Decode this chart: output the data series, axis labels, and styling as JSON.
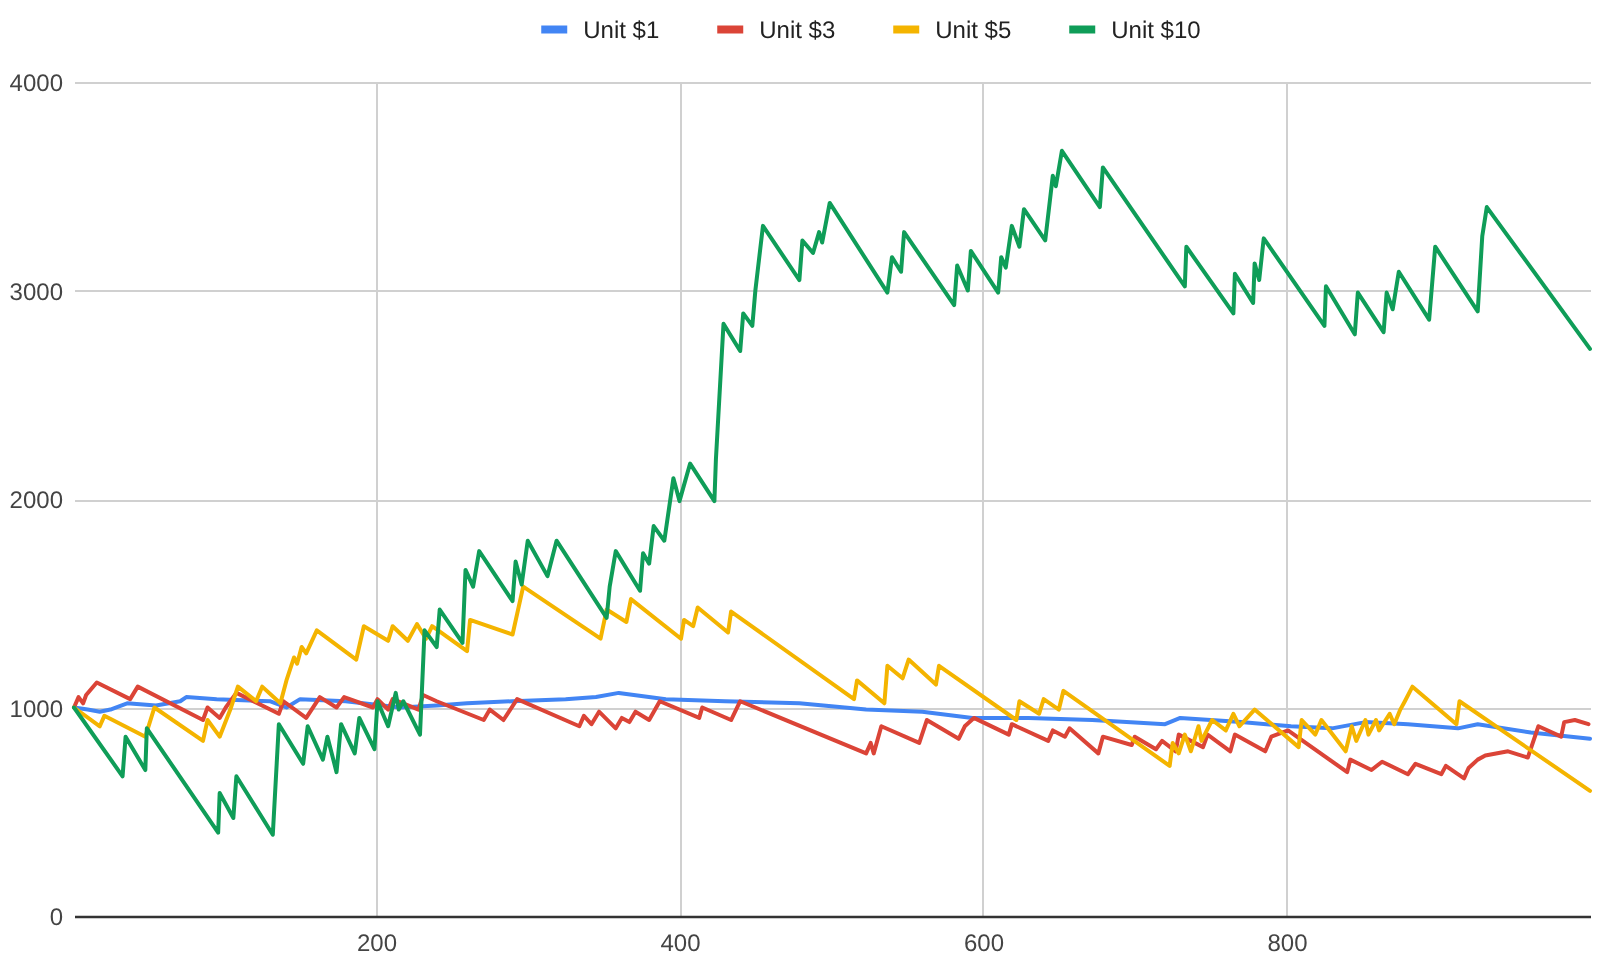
{
  "chart_data": {
    "type": "line",
    "series": [
      {
        "name": "Unit $1",
        "color": "#4285f4",
        "x": [
          1,
          10,
          18,
          25,
          36,
          55,
          71,
          75,
          95,
          130,
          141,
          150,
          180,
          216,
          240,
          260,
          290,
          325,
          345,
          360,
          391,
          430,
          479,
          523,
          560,
          593,
          630,
          672,
          720,
          730,
          770,
          803,
          830,
          852,
          880,
          913,
          926,
          961,
          1000
        ],
        "values": [
          1000,
          990,
          980,
          990,
          1020,
          1010,
          1030,
          1050,
          1040,
          1030,
          1000,
          1040,
          1030,
          1000,
          1010,
          1020,
          1030,
          1040,
          1050,
          1070,
          1040,
          1030,
          1020,
          990,
          980,
          950,
          950,
          940,
          920,
          950,
          930,
          910,
          900,
          930,
          920,
          900,
          920,
          880,
          850
        ]
      },
      {
        "name": "Unit $3",
        "color": "#db4437",
        "x": [
          1,
          4,
          7,
          9,
          16,
          38,
          43,
          86,
          89,
          97,
          101,
          108,
          136,
          139,
          154,
          163,
          174,
          179,
          198,
          201,
          208,
          211,
          228,
          231,
          240,
          271,
          275,
          284,
          293,
          334,
          337,
          342,
          347,
          358,
          362,
          367,
          371,
          380,
          387,
          413,
          415,
          434,
          440,
          523,
          526,
          528,
          533,
          558,
          563,
          584,
          588,
          594,
          617,
          619,
          643,
          646,
          654,
          657,
          676,
          679,
          698,
          700,
          714,
          718,
          727,
          729,
          745,
          748,
          763,
          766,
          786,
          790,
          801,
          840,
          842,
          856,
          863,
          880,
          885,
          902,
          905,
          917,
          920,
          926,
          931,
          946,
          959,
          966,
          981,
          983,
          990,
          999
        ],
        "values": [
          1000,
          1050,
          1020,
          1060,
          1120,
          1040,
          1100,
          940,
          1000,
          950,
          1000,
          1070,
          970,
          1030,
          950,
          1050,
          1000,
          1050,
          1000,
          1040,
          990,
          1040,
          990,
          1060,
          1030,
          940,
          990,
          940,
          1040,
          910,
          960,
          920,
          980,
          900,
          950,
          930,
          980,
          940,
          1030,
          950,
          1000,
          940,
          1030,
          780,
          830,
          780,
          910,
          830,
          940,
          850,
          910,
          950,
          870,
          920,
          840,
          890,
          860,
          900,
          780,
          860,
          820,
          860,
          800,
          840,
          790,
          870,
          810,
          870,
          790,
          870,
          790,
          860,
          890,
          690,
          750,
          700,
          740,
          680,
          730,
          680,
          720,
          660,
          710,
          750,
          770,
          790,
          760,
          910,
          860,
          930,
          940,
          920
        ]
      },
      {
        "name": "Unit $5",
        "color": "#f4b400",
        "x": [
          1,
          18,
          21,
          48,
          54,
          86,
          89,
          97,
          104,
          109,
          121,
          125,
          137,
          141,
          146,
          148,
          151,
          154,
          161,
          187,
          192,
          208,
          211,
          221,
          227,
          233,
          237,
          260,
          262,
          290,
          297,
          348,
          352,
          365,
          368,
          401,
          403,
          409,
          412,
          432,
          434,
          515,
          517,
          535,
          537,
          547,
          551,
          569,
          571,
          622,
          624,
          637,
          640,
          650,
          653,
          723,
          725,
          729,
          733,
          737,
          742,
          744,
          751,
          760,
          765,
          769,
          779,
          808,
          810,
          819,
          823,
          839,
          843,
          846,
          852,
          854,
          859,
          861,
          868,
          871,
          875,
          878,
          883,
          912,
          914,
          1000
        ],
        "values": [
          1000,
          910,
          960,
          860,
          1000,
          840,
          940,
          860,
          990,
          1100,
          1030,
          1100,
          1020,
          1130,
          1240,
          1210,
          1290,
          1260,
          1370,
          1230,
          1390,
          1320,
          1390,
          1320,
          1400,
          1330,
          1390,
          1270,
          1420,
          1350,
          1580,
          1330,
          1470,
          1410,
          1520,
          1330,
          1420,
          1390,
          1480,
          1360,
          1460,
          1040,
          1130,
          1020,
          1200,
          1140,
          1230,
          1110,
          1200,
          940,
          1030,
          970,
          1040,
          990,
          1080,
          720,
          830,
          780,
          870,
          790,
          910,
          840,
          940,
          890,
          970,
          910,
          990,
          810,
          940,
          870,
          940,
          790,
          910,
          840,
          940,
          870,
          940,
          890,
          970,
          920,
          990,
          1030,
          1100,
          920,
          1030,
          600
        ]
      },
      {
        "name": "Unit $10",
        "color": "#0f9d58",
        "x": [
          1,
          33,
          35,
          48,
          49,
          96,
          97,
          106,
          108,
          132,
          136,
          152,
          155,
          165,
          168,
          174,
          177,
          186,
          189,
          199,
          201,
          208,
          213,
          215,
          218,
          229,
          232,
          240,
          242,
          257,
          259,
          264,
          268,
          290,
          292,
          296,
          300,
          313,
          319,
          352,
          354,
          358,
          374,
          376,
          380,
          383,
          390,
          396,
          400,
          407,
          423,
          424,
          429,
          440,
          442,
          448,
          450,
          455,
          479,
          481,
          488,
          492,
          494,
          499,
          537,
          540,
          546,
          548,
          581,
          583,
          590,
          592,
          610,
          612,
          615,
          619,
          624,
          627,
          641,
          646,
          648,
          652,
          677,
          679,
          733,
          734,
          765,
          766,
          778,
          779,
          782,
          785,
          825,
          826,
          845,
          847,
          864,
          866,
          870,
          874,
          894,
          898,
          926,
          929,
          932,
          1000
        ],
        "values": [
          1000,
          670,
          860,
          700,
          900,
          400,
          590,
          470,
          670,
          390,
          920,
          730,
          910,
          750,
          860,
          690,
          920,
          780,
          950,
          800,
          1030,
          910,
          1070,
          990,
          1030,
          870,
          1370,
          1290,
          1470,
          1310,
          1660,
          1580,
          1750,
          1510,
          1700,
          1590,
          1800,
          1630,
          1800,
          1430,
          1580,
          1750,
          1560,
          1740,
          1690,
          1870,
          1800,
          2100,
          1990,
          2170,
          1990,
          2190,
          2840,
          2710,
          2890,
          2830,
          3000,
          3310,
          3050,
          3240,
          3180,
          3280,
          3230,
          3420,
          2990,
          3160,
          3090,
          3280,
          2930,
          3120,
          3000,
          3190,
          2990,
          3160,
          3110,
          3310,
          3210,
          3390,
          3240,
          3550,
          3500,
          3670,
          3400,
          3590,
          3020,
          3210,
          2890,
          3080,
          2940,
          3130,
          3050,
          3250,
          2830,
          3020,
          2790,
          2990,
          2800,
          2990,
          2910,
          3090,
          2860,
          3210,
          2900,
          3260,
          3400,
          2720
        ]
      }
    ],
    "xlim": [
      1,
      1000
    ],
    "xticks": [
      200,
      400,
      600,
      800
    ],
    "ylim": [
      0,
      4000
    ],
    "yticks": [
      0,
      1000,
      2000,
      3000,
      4000
    ],
    "grid": true,
    "legend": "top",
    "line_style": "solid"
  }
}
